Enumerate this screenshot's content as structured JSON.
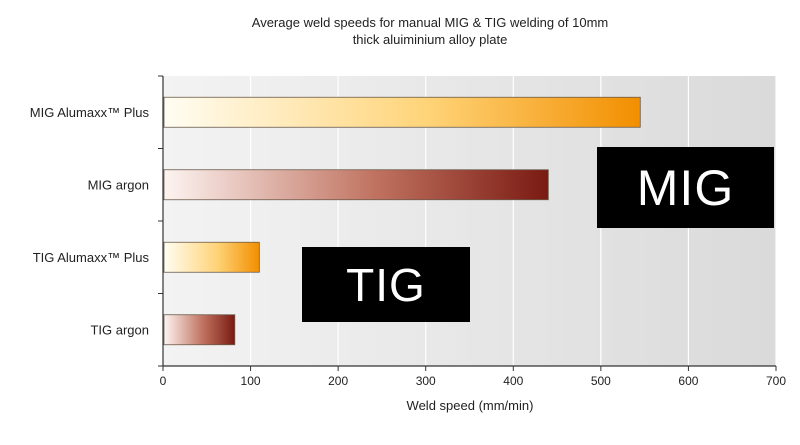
{
  "chart_data": {
    "type": "bar",
    "orientation": "horizontal",
    "title_lines": [
      "Average weld speeds  for manual MIG & TIG welding of 10mm",
      "thick aluiminium alloy plate"
    ],
    "xlabel": "Weld speed (mm/min)",
    "ylabel": "",
    "xlim": [
      0,
      700
    ],
    "x_ticks": [
      "0",
      "100",
      "200",
      "300",
      "400",
      "500",
      "600",
      "700"
    ],
    "categories": [
      "MIG Alumaxx™ Plus",
      "MIG argon",
      "TIG Alumaxx™ Plus",
      "TIG argon"
    ],
    "values": [
      545,
      440,
      110,
      82
    ],
    "bar_styles": [
      "orange-gradient",
      "maroon-gradient",
      "orange-gradient",
      "maroon-gradient"
    ],
    "grid": true,
    "legend": "none"
  },
  "annotations": {
    "mig": "MIG",
    "tig": "TIG"
  },
  "colors": {
    "orange_start": "#fffdf3",
    "orange_mid": "#ffd479",
    "orange_end": "#f28f00",
    "maroon_start": "#fdf4f1",
    "maroon_mid": "#c07260",
    "maroon_end": "#7a1a12",
    "callout_bg": "#000000",
    "callout_text": "#ffffff"
  }
}
